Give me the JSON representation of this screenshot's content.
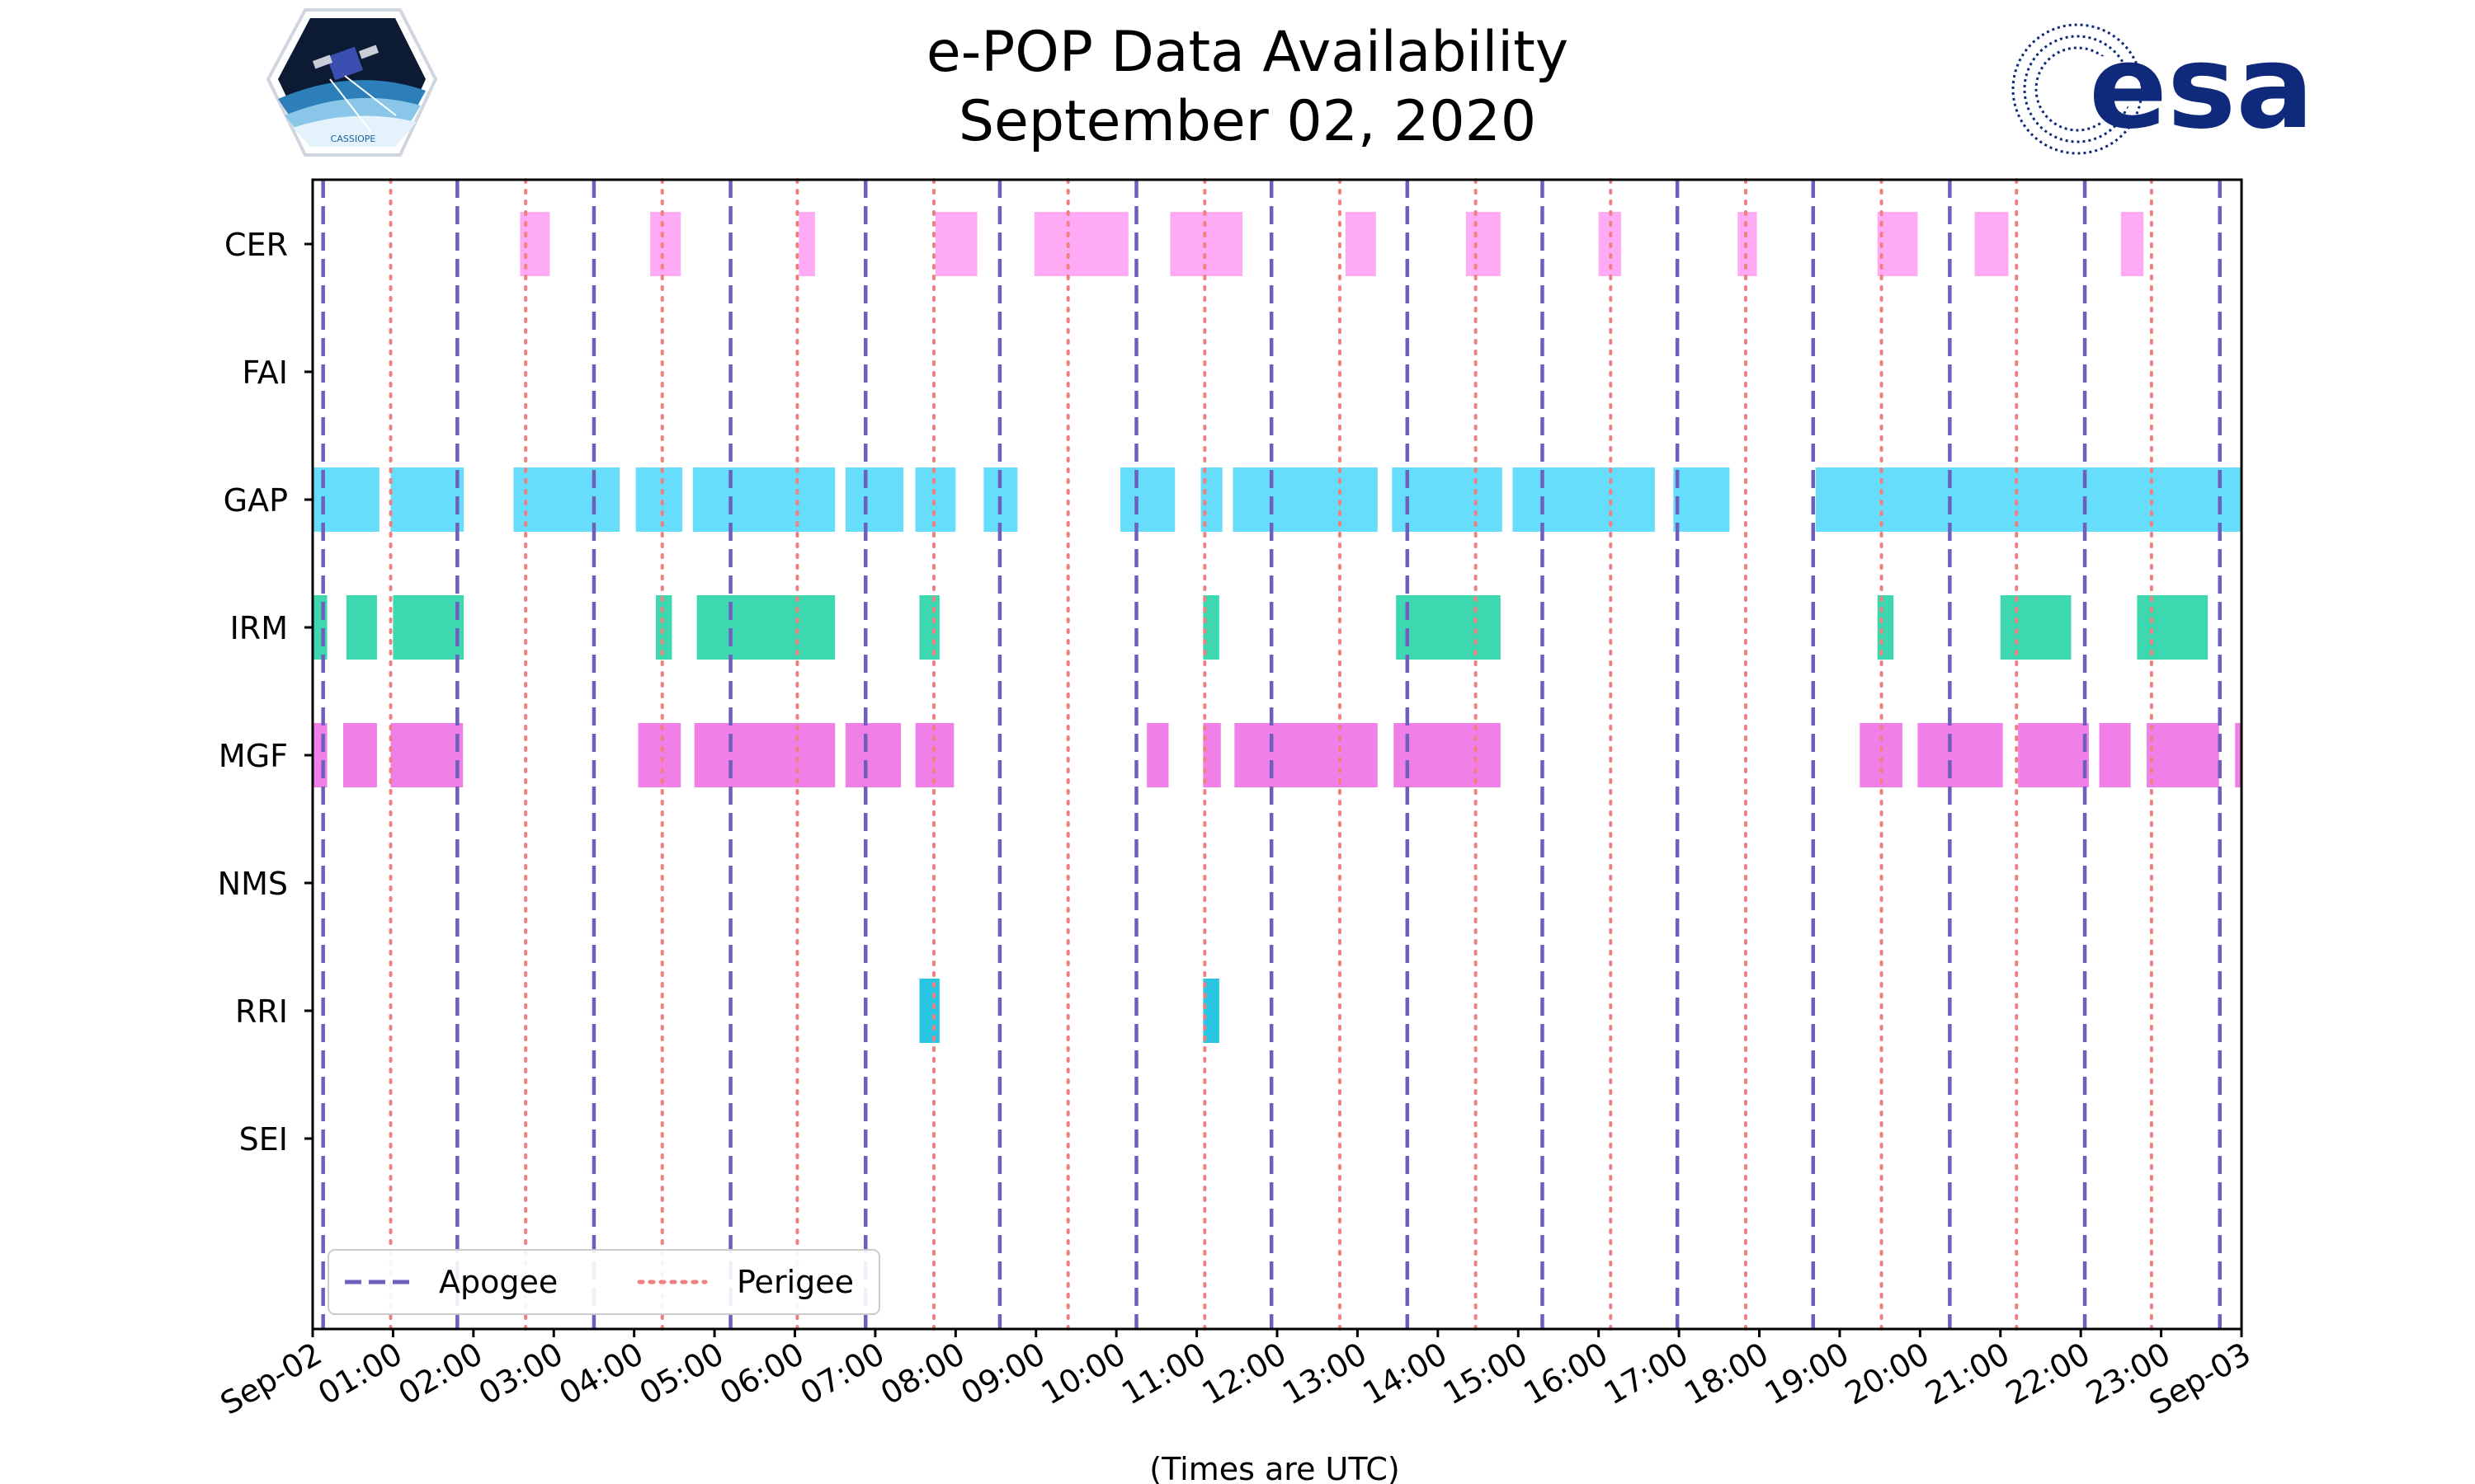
{
  "chart_data": {
    "type": "timeline",
    "title": "e-POP Data Availability",
    "subtitle": "September 02, 2020",
    "xlabel": "(Times are UTC)",
    "x_unit": "hours since Sep-02 00:00 UTC",
    "xlim": [
      0,
      24
    ],
    "x_ticks": [
      {
        "value": 0,
        "label": "Sep-02"
      },
      {
        "value": 1,
        "label": "01:00"
      },
      {
        "value": 2,
        "label": "02:00"
      },
      {
        "value": 3,
        "label": "03:00"
      },
      {
        "value": 4,
        "label": "04:00"
      },
      {
        "value": 5,
        "label": "05:00"
      },
      {
        "value": 6,
        "label": "06:00"
      },
      {
        "value": 7,
        "label": "07:00"
      },
      {
        "value": 8,
        "label": "08:00"
      },
      {
        "value": 9,
        "label": "09:00"
      },
      {
        "value": 10,
        "label": "10:00"
      },
      {
        "value": 11,
        "label": "11:00"
      },
      {
        "value": 12,
        "label": "12:00"
      },
      {
        "value": 13,
        "label": "13:00"
      },
      {
        "value": 14,
        "label": "14:00"
      },
      {
        "value": 15,
        "label": "15:00"
      },
      {
        "value": 16,
        "label": "16:00"
      },
      {
        "value": 17,
        "label": "17:00"
      },
      {
        "value": 18,
        "label": "18:00"
      },
      {
        "value": 19,
        "label": "19:00"
      },
      {
        "value": 20,
        "label": "20:00"
      },
      {
        "value": 21,
        "label": "21:00"
      },
      {
        "value": 22,
        "label": "22:00"
      },
      {
        "value": 23,
        "label": "23:00"
      },
      {
        "value": 24,
        "label": "Sep-03"
      }
    ],
    "categories": [
      "CER",
      "FAI",
      "GAP",
      "IRM",
      "MGF",
      "NMS",
      "RRI",
      "SEI"
    ],
    "series": [
      {
        "name": "CER",
        "color": "#ffaaf5",
        "intervals": [
          [
            2.58,
            2.95
          ],
          [
            4.2,
            4.58
          ],
          [
            6.05,
            6.25
          ],
          [
            7.75,
            8.27
          ],
          [
            8.98,
            10.15
          ],
          [
            10.67,
            11.57
          ],
          [
            12.85,
            13.23
          ],
          [
            14.35,
            14.78
          ],
          [
            16.0,
            16.28
          ],
          [
            17.73,
            17.97
          ],
          [
            19.47,
            19.97
          ],
          [
            20.68,
            21.1
          ],
          [
            22.5,
            22.78
          ]
        ]
      },
      {
        "name": "FAI",
        "color": "#777777",
        "intervals": []
      },
      {
        "name": "GAP",
        "color": "#66ddfa",
        "intervals": [
          [
            0.0,
            0.83
          ],
          [
            0.97,
            1.88
          ],
          [
            2.5,
            3.82
          ],
          [
            4.02,
            4.6
          ],
          [
            4.73,
            6.5
          ],
          [
            6.63,
            7.35
          ],
          [
            7.5,
            8.0
          ],
          [
            8.35,
            8.77
          ],
          [
            10.05,
            10.73
          ],
          [
            11.05,
            11.32
          ],
          [
            11.45,
            13.25
          ],
          [
            13.43,
            14.8
          ],
          [
            14.93,
            16.7
          ],
          [
            16.93,
            17.63
          ],
          [
            18.7,
            24.0
          ]
        ]
      },
      {
        "name": "IRM",
        "color": "#3dd8b0",
        "intervals": [
          [
            0.0,
            0.18
          ],
          [
            0.42,
            0.8
          ],
          [
            1.0,
            1.88
          ],
          [
            4.27,
            4.47
          ],
          [
            4.78,
            6.5
          ],
          [
            7.55,
            7.8
          ],
          [
            11.08,
            11.28
          ],
          [
            13.48,
            14.78
          ],
          [
            19.47,
            19.67
          ],
          [
            21.0,
            21.88
          ],
          [
            22.7,
            23.58
          ]
        ]
      },
      {
        "name": "MGF",
        "color": "#f07fe8",
        "intervals": [
          [
            0.0,
            0.18
          ],
          [
            0.38,
            0.8
          ],
          [
            0.97,
            1.87
          ],
          [
            4.05,
            4.58
          ],
          [
            4.75,
            6.5
          ],
          [
            6.63,
            7.32
          ],
          [
            7.5,
            7.98
          ],
          [
            10.38,
            10.65
          ],
          [
            11.08,
            11.3
          ],
          [
            11.47,
            13.25
          ],
          [
            13.45,
            14.78
          ],
          [
            19.25,
            19.78
          ],
          [
            19.97,
            21.03
          ],
          [
            21.22,
            22.1
          ],
          [
            22.23,
            22.62
          ],
          [
            22.82,
            23.72
          ],
          [
            23.92,
            24.0
          ]
        ]
      },
      {
        "name": "NMS",
        "color": "#777777",
        "intervals": []
      },
      {
        "name": "RRI",
        "color": "#29c6e4",
        "intervals": [
          [
            7.55,
            7.8
          ],
          [
            11.08,
            11.28
          ]
        ]
      },
      {
        "name": "SEI",
        "color": "#777777",
        "intervals": []
      }
    ],
    "apogee": {
      "label": "Apogee",
      "color": "#6e5fbc",
      "style": "dashed",
      "times": [
        0.13,
        1.8,
        3.5,
        5.2,
        6.88,
        8.55,
        10.25,
        11.93,
        13.62,
        15.3,
        16.98,
        18.67,
        20.37,
        22.05,
        23.73
      ]
    },
    "perigee": {
      "label": "Perigee",
      "color": "#f08080",
      "style": "dotted",
      "times": [
        0.97,
        2.65,
        4.35,
        6.03,
        7.73,
        9.4,
        11.1,
        12.78,
        14.47,
        16.15,
        17.83,
        19.52,
        21.2,
        22.88
      ]
    },
    "legend": {
      "location": "lower-left",
      "entries": [
        "Apogee",
        "Perigee"
      ]
    }
  },
  "logos": {
    "left": {
      "icon": "cassiope-mission-patch-icon",
      "text": "CASSIOPE"
    },
    "right": {
      "icon": "esa-logo-icon",
      "text": "esa",
      "color": "#0f2a7a"
    }
  },
  "colors": {
    "axis": "#000000",
    "background": "#ffffff"
  }
}
